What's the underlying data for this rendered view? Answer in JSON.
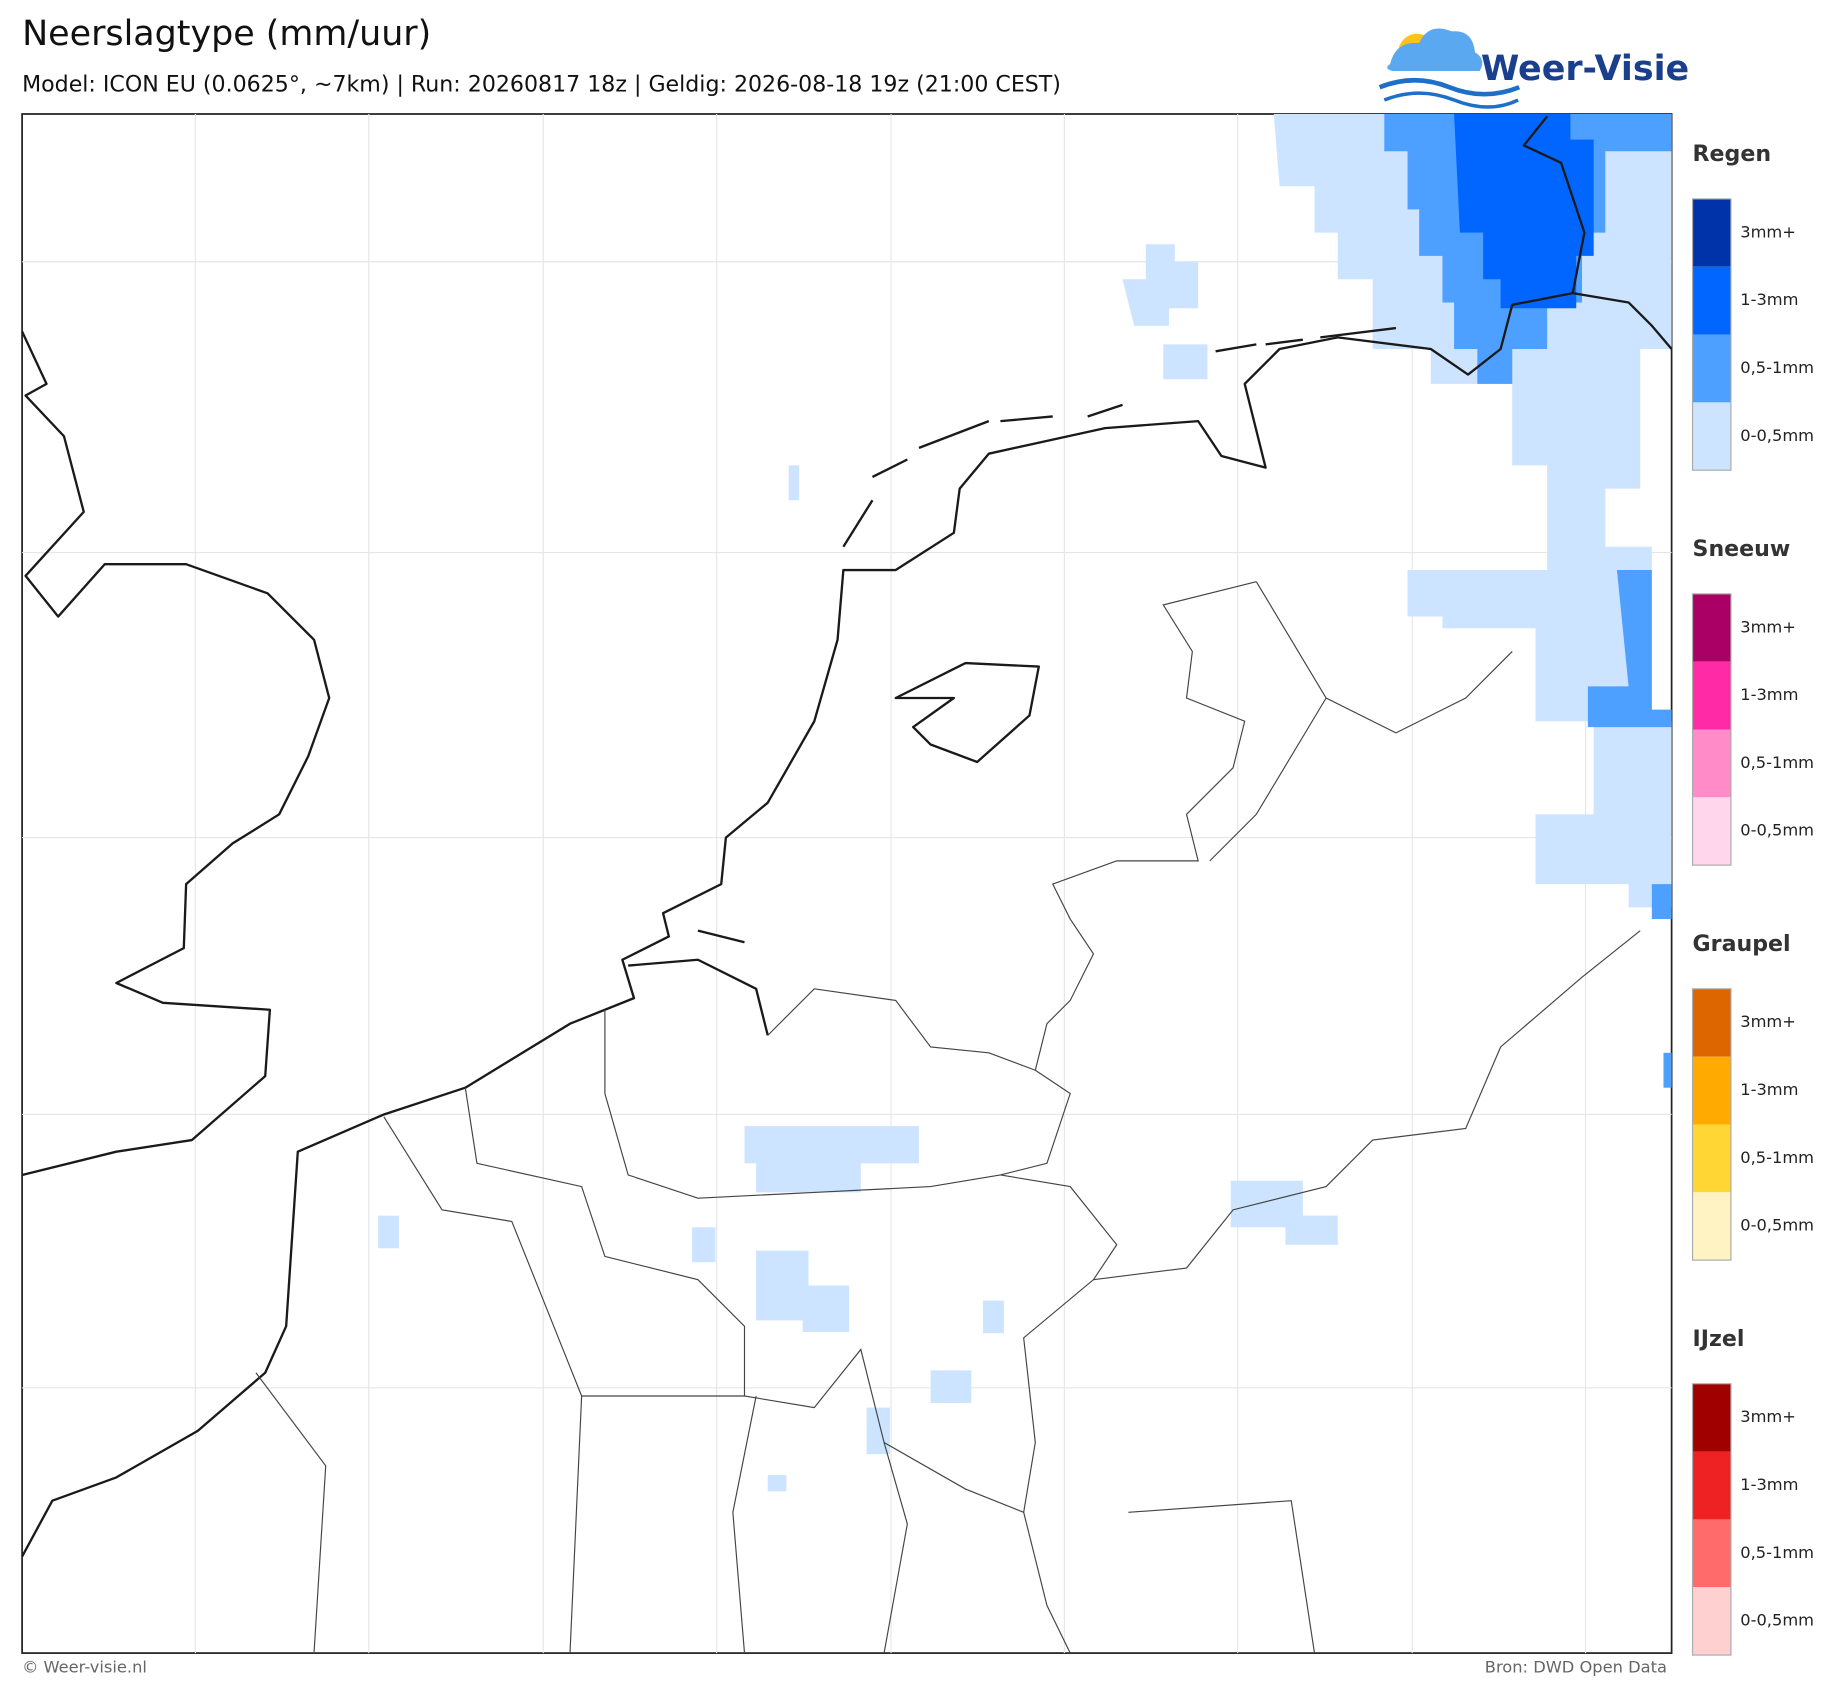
{
  "header": {
    "title": "Neerslagtype (mm/uur)",
    "subtitle": "Model: ICON EU (0.0625°, ~7km)  |  Run: 20260817 18z  |  Geldig: 2026-08-18 19z (21:00 CEST)",
    "logo": "Weer-Visie"
  },
  "legend": [
    {
      "title": "Regen",
      "colors": [
        "#0033aa",
        "#0066ff",
        "#4da0ff",
        "#cce4ff"
      ],
      "labels": [
        "3mm+",
        "1-3mm",
        "0,5-1mm",
        "0-0,5mm"
      ]
    },
    {
      "title": "Sneeuw",
      "colors": [
        "#aa0066",
        "#ff2aa5",
        "#ff8cc8",
        "#ffd6ec"
      ],
      "labels": [
        "3mm+",
        "1-3mm",
        "0,5-1mm",
        "0-0,5mm"
      ]
    },
    {
      "title": "Graupel",
      "colors": [
        "#dd6600",
        "#ffaa00",
        "#ffd633",
        "#fff3c4"
      ],
      "labels": [
        "3mm+",
        "1-3mm",
        "0,5-1mm",
        "0-0,5mm"
      ]
    },
    {
      "title": "IJzel",
      "colors": [
        "#a00000",
        "#ee2222",
        "#ff6b6b",
        "#ffd0d0"
      ],
      "labels": [
        "3mm+",
        "1-3mm",
        "0,5-1mm",
        "0-0,5mm"
      ]
    }
  ],
  "footer": {
    "left": "© Weer-visie.nl",
    "right": "Bron: DWD Open Data"
  }
}
